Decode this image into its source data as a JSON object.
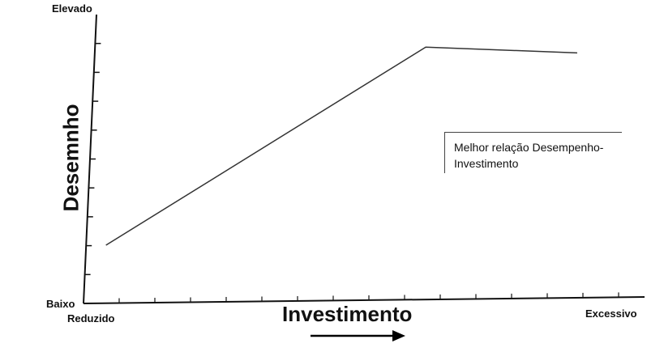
{
  "chart_data": {
    "type": "line",
    "xlabel": "Investimento",
    "ylabel": "Desemnho",
    "x_low_label": "Reduzido",
    "x_high_label": "Excessivo",
    "y_low_label": "Baixo",
    "y_high_label": "Elevado",
    "xlim": [
      0,
      100
    ],
    "ylim": [
      0,
      100
    ],
    "grid": false,
    "series": [
      {
        "x": [
          4,
          61,
          88
        ],
        "y": [
          20,
          88,
          86
        ]
      }
    ],
    "annotations": [
      "Melhor relação Desempenho-",
      "Investimento"
    ]
  },
  "colors": {
    "axis": "#111111",
    "line": "#333333"
  },
  "icons": {
    "arrow": "right-arrow-icon"
  }
}
